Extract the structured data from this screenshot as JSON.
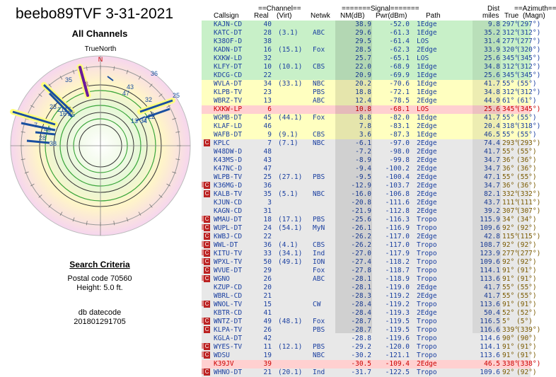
{
  "title": "beebo89TVF 3-31-2021",
  "subtitle": "All Channels",
  "polar": {
    "north_label": "TrueNorth",
    "n_label": "N",
    "labels": [
      {
        "t": "36",
        "c": "#1a4fa0"
      },
      {
        "t": "6",
        "c": "#7a1fa0"
      },
      {
        "t": "35",
        "c": "#1a4fa0"
      },
      {
        "t": "43",
        "c": "#1a4fa0"
      },
      {
        "t": "47",
        "c": "#1a4fa0"
      },
      {
        "t": "32",
        "c": "#1a4fa0"
      },
      {
        "t": "25",
        "c": "#1a4fa0"
      },
      {
        "t": "23",
        "c": "#1a4fa0"
      },
      {
        "t": "16",
        "c": "#1a4fa0"
      },
      {
        "t": "21",
        "c": "#1a4fa0"
      },
      {
        "t": "15",
        "c": "#1a4fa0"
      },
      {
        "t": "45",
        "c": "#1a4fa0"
      },
      {
        "t": "9",
        "c": "#1a4fa0"
      },
      {
        "t": "3",
        "c": "#1a4fa0"
      },
      {
        "t": "22",
        "c": "#1a4fa0"
      },
      {
        "t": "34",
        "c": "#1a4fa0"
      },
      {
        "t": "13",
        "c": "#1a4fa0"
      },
      {
        "t": "7",
        "c": "#1a4fa0"
      },
      {
        "t": "40",
        "c": "#1a4fa0"
      },
      {
        "t": "28",
        "c": "#1a4fa0"
      },
      {
        "t": "38",
        "c": "#1a4fa0"
      }
    ]
  },
  "criteria": {
    "heading": "Search Criteria",
    "postal": "Postal code 70560",
    "height": "Height: 5.0 ft.",
    "db_label": "db datecode",
    "db_value": "201801291705"
  },
  "header": {
    "channel_group": "==Channel==",
    "signal_group": "=======Signal=======",
    "dist_group": "Dist",
    "azimuth_group": "==Azimuth==",
    "callsign": "Callsign",
    "real": "Real",
    "virt": "(Virt)",
    "netwk": "Netwk",
    "nm": "NM(dB)",
    "pwr": "Pwr(dBm)",
    "path": "Path",
    "miles": "miles",
    "true_az": "True",
    "magn": "(Magn)"
  },
  "colors": {
    "green": "#c8f0c8",
    "yellow": "#ffffc0",
    "pink": "#ffd0d0",
    "gray": "#e8e8e8",
    "blue_text": "#1a3fa0",
    "red_text": "#cc0000"
  },
  "rows": [
    {
      "call": "KAJN-CD",
      "real": "40",
      "virt": "",
      "net": "",
      "nm": "38.9",
      "pwr": "-52.0",
      "path": "1Edge",
      "dist": "9.8",
      "az": "297°",
      "mag": "(297°)",
      "bg": "green",
      "fg": "blue",
      "badge": ""
    },
    {
      "call": "KATC-DT",
      "real": "28",
      "virt": "(3.1)",
      "net": "ABC",
      "nm": "29.6",
      "pwr": "-61.3",
      "path": "1Edge",
      "dist": "35.2",
      "az": "312°",
      "mag": "(312°)",
      "bg": "green",
      "fg": "blue",
      "badge": ""
    },
    {
      "call": "K38OF-D",
      "real": "38",
      "virt": "",
      "net": "",
      "nm": "29.5",
      "pwr": "-61.4",
      "path": "LOS",
      "dist": "31.4",
      "az": "277°",
      "mag": "(277°)",
      "bg": "green",
      "fg": "blue",
      "badge": ""
    },
    {
      "call": "KADN-DT",
      "real": "16",
      "virt": "(15.1)",
      "net": "Fox",
      "nm": "28.5",
      "pwr": "-62.3",
      "path": "2Edge",
      "dist": "33.9",
      "az": "320°",
      "mag": "(320°)",
      "bg": "green",
      "fg": "blue",
      "badge": ""
    },
    {
      "call": "KXKW-LD",
      "real": "32",
      "virt": "",
      "net": "",
      "nm": "25.7",
      "pwr": "-65.1",
      "path": "LOS",
      "dist": "25.6",
      "az": "345°",
      "mag": "(345°)",
      "bg": "green",
      "fg": "blue",
      "badge": ""
    },
    {
      "call": "KLFY-DT",
      "real": "10",
      "virt": "(10.1)",
      "net": "CBS",
      "nm": "22.0",
      "pwr": "-68.9",
      "path": "1Edge",
      "dist": "34.8",
      "az": "312°",
      "mag": "(312°)",
      "bg": "green",
      "fg": "blue",
      "badge": ""
    },
    {
      "call": "KDCG-CD",
      "real": "22",
      "virt": "",
      "net": "",
      "nm": "20.9",
      "pwr": "-69.9",
      "path": "1Edge",
      "dist": "25.6",
      "az": "345°",
      "mag": "(345°)",
      "bg": "green",
      "fg": "blue",
      "badge": ""
    },
    {
      "call": "WVLA-DT",
      "real": "34",
      "virt": "(33.1)",
      "net": "NBC",
      "nm": "20.2",
      "pwr": "-70.6",
      "path": "1Edge",
      "dist": "41.7",
      "az": "55°",
      "mag": "(55°)",
      "bg": "yellow",
      "fg": "blue",
      "badge": ""
    },
    {
      "call": "KLPB-TV",
      "real": "23",
      "virt": "",
      "net": "PBS",
      "nm": "18.8",
      "pwr": "-72.1",
      "path": "1Edge",
      "dist": "34.8",
      "az": "312°",
      "mag": "(312°)",
      "bg": "yellow",
      "fg": "blue",
      "badge": ""
    },
    {
      "call": "WBRZ-TV",
      "real": "13",
      "virt": "",
      "net": "ABC",
      "nm": "12.4",
      "pwr": "-78.5",
      "path": "2Edge",
      "dist": "44.9",
      "az": "61°",
      "mag": "(61°)",
      "bg": "yellow",
      "fg": "blue",
      "badge": ""
    },
    {
      "call": "KXKW-LP",
      "real": "6",
      "virt": "",
      "net": "",
      "nm": "10.8",
      "pwr": "-68.1",
      "path": "LOS",
      "dist": "25.6",
      "az": "345°",
      "mag": "(345°)",
      "bg": "pink",
      "fg": "purple",
      "badge": ""
    },
    {
      "call": "WGMB-DT",
      "real": "45",
      "virt": "(44.1)",
      "net": "Fox",
      "nm": "8.8",
      "pwr": "-82.0",
      "path": "1Edge",
      "dist": "41.7",
      "az": "55°",
      "mag": "(55°)",
      "bg": "yellow",
      "fg": "blue",
      "badge": ""
    },
    {
      "call": "KLAF-LD",
      "real": "46",
      "virt": "",
      "net": "",
      "nm": "7.8",
      "pwr": "-83.1",
      "path": "2Edge",
      "dist": "20.4",
      "az": "318°",
      "mag": "(318°)",
      "bg": "yellow",
      "fg": "blue",
      "badge": ""
    },
    {
      "call": "WAFB-DT",
      "real": "9",
      "virt": "(9.1)",
      "net": "CBS",
      "nm": "3.6",
      "pwr": "-87.3",
      "path": "1Edge",
      "dist": "46.5",
      "az": "55°",
      "mag": "(55°)",
      "bg": "yellow",
      "fg": "blue",
      "badge": ""
    },
    {
      "call": "KPLC",
      "real": "7",
      "virt": "(7.1)",
      "net": "NBC",
      "nm": "-6.1",
      "pwr": "-97.0",
      "path": "2Edge",
      "dist": "74.4",
      "az": "293°",
      "mag": "(293°)",
      "bg": "gray",
      "fg": "blue",
      "badge": "C"
    },
    {
      "call": "W48DW-D",
      "real": "48",
      "virt": "",
      "net": "",
      "nm": "-7.2",
      "pwr": "-98.0",
      "path": "2Edge",
      "dist": "41.7",
      "az": "55°",
      "mag": "(55°)",
      "bg": "gray",
      "fg": "blue",
      "badge": ""
    },
    {
      "call": "K43MS-D",
      "real": "43",
      "virt": "",
      "net": "",
      "nm": "-8.9",
      "pwr": "-99.8",
      "path": "2Edge",
      "dist": "34.7",
      "az": "36°",
      "mag": "(36°)",
      "bg": "gray",
      "fg": "blue",
      "badge": ""
    },
    {
      "call": "K47NC-D",
      "real": "47",
      "virt": "",
      "net": "",
      "nm": "-9.4",
      "pwr": "-100.2",
      "path": "2Edge",
      "dist": "34.7",
      "az": "36°",
      "mag": "(36°)",
      "bg": "gray",
      "fg": "blue",
      "badge": ""
    },
    {
      "call": "WLPB-TV",
      "real": "25",
      "virt": "(27.1)",
      "net": "PBS",
      "nm": "-9.5",
      "pwr": "-100.4",
      "path": "2Edge",
      "dist": "47.1",
      "az": "55°",
      "mag": "(55°)",
      "bg": "gray",
      "fg": "blue",
      "badge": ""
    },
    {
      "call": "K36MG-D",
      "real": "36",
      "virt": "",
      "net": "",
      "nm": "-12.9",
      "pwr": "-103.7",
      "path": "2Edge",
      "dist": "34.7",
      "az": "36°",
      "mag": "(36°)",
      "bg": "gray",
      "fg": "blue",
      "badge": "aC"
    },
    {
      "call": "KALB-TV",
      "real": "35",
      "virt": "(5.1)",
      "net": "NBC",
      "nm": "-16.0",
      "pwr": "-106.8",
      "path": "2Edge",
      "dist": "82.1",
      "az": "332°",
      "mag": "(332°)",
      "bg": "gray",
      "fg": "blue",
      "badge": "C"
    },
    {
      "call": "KJUN-CD",
      "real": "3",
      "virt": "",
      "net": "",
      "nm": "-20.8",
      "pwr": "-111.6",
      "path": "2Edge",
      "dist": "43.7",
      "az": "111°",
      "mag": "(111°)",
      "bg": "gray",
      "fg": "blue",
      "badge": ""
    },
    {
      "call": "KAGN-CD",
      "real": "31",
      "virt": "",
      "net": "",
      "nm": "-21.9",
      "pwr": "-112.8",
      "path": "2Edge",
      "dist": "39.2",
      "az": "307°",
      "mag": "(307°)",
      "bg": "gray",
      "fg": "blue",
      "badge": ""
    },
    {
      "call": "WMAU-DT",
      "real": "18",
      "virt": "(17.1)",
      "net": "PBS",
      "nm": "-25.6",
      "pwr": "-116.3",
      "path": "Tropo",
      "dist": "115.9",
      "az": "34°",
      "mag": "(34°)",
      "bg": "gray",
      "fg": "blue",
      "badge": "aC"
    },
    {
      "call": "WUPL-DT",
      "real": "24",
      "virt": "(54.1)",
      "net": "MyN",
      "nm": "-26.1",
      "pwr": "-116.9",
      "path": "Tropo",
      "dist": "109.6",
      "az": "92°",
      "mag": "(92°)",
      "bg": "gray",
      "fg": "blue",
      "badge": "aC"
    },
    {
      "call": "KWBJ-CD",
      "real": "22",
      "virt": "",
      "net": "",
      "nm": "-26.2",
      "pwr": "-117.0",
      "path": "2Edge",
      "dist": "42.8",
      "az": "115°",
      "mag": "(115°)",
      "bg": "gray",
      "fg": "blue",
      "badge": "C"
    },
    {
      "call": "WWL-DT",
      "real": "36",
      "virt": "(4.1)",
      "net": "CBS",
      "nm": "-26.2",
      "pwr": "-117.0",
      "path": "Tropo",
      "dist": "108.7",
      "az": "92°",
      "mag": "(92°)",
      "bg": "gray",
      "fg": "blue",
      "badge": "aC"
    },
    {
      "call": "KITU-TV",
      "real": "33",
      "virt": "(34.1)",
      "net": "Ind",
      "nm": "-27.0",
      "pwr": "-117.9",
      "path": "Tropo",
      "dist": "123.9",
      "az": "277°",
      "mag": "(277°)",
      "bg": "gray",
      "fg": "blue",
      "badge": "aC"
    },
    {
      "call": "WPXL-TV",
      "real": "50",
      "virt": "(49.1)",
      "net": "ION",
      "nm": "-27.4",
      "pwr": "-118.2",
      "path": "Tropo",
      "dist": "109.6",
      "az": "92°",
      "mag": "(92°)",
      "bg": "gray",
      "fg": "blue",
      "badge": "aC"
    },
    {
      "call": "WVUE-DT",
      "real": "29",
      "virt": "",
      "net": "Fox",
      "nm": "-27.8",
      "pwr": "-118.7",
      "path": "Tropo",
      "dist": "114.1",
      "az": "91°",
      "mag": "(91°)",
      "bg": "gray",
      "fg": "blue",
      "badge": "C"
    },
    {
      "call": "WGNO",
      "real": "26",
      "virt": "",
      "net": "ABC",
      "nm": "-28.1",
      "pwr": "-118.9",
      "path": "Tropo",
      "dist": "113.6",
      "az": "91°",
      "mag": "(91°)",
      "bg": "gray",
      "fg": "blue",
      "badge": "aC"
    },
    {
      "call": "KZUP-CD",
      "real": "20",
      "virt": "",
      "net": "",
      "nm": "-28.1",
      "pwr": "-119.0",
      "path": "2Edge",
      "dist": "41.7",
      "az": "55°",
      "mag": "(55°)",
      "bg": "gray",
      "fg": "blue",
      "badge": ""
    },
    {
      "call": "WBRL-CD",
      "real": "21",
      "virt": "",
      "net": "",
      "nm": "-28.3",
      "pwr": "-119.2",
      "path": "2Edge",
      "dist": "41.7",
      "az": "55°",
      "mag": "(55°)",
      "bg": "gray",
      "fg": "blue",
      "badge": ""
    },
    {
      "call": "WNOL-TV",
      "real": "15",
      "virt": "",
      "net": "CW",
      "nm": "-28.4",
      "pwr": "-119.2",
      "path": "Tropo",
      "dist": "113.6",
      "az": "91°",
      "mag": "(91°)",
      "bg": "gray",
      "fg": "blue",
      "badge": "aC"
    },
    {
      "call": "KBTR-CD",
      "real": "41",
      "virt": "",
      "net": "",
      "nm": "-28.4",
      "pwr": "-119.3",
      "path": "2Edge",
      "dist": "50.4",
      "az": "52°",
      "mag": "(52°)",
      "bg": "gray",
      "fg": "blue",
      "badge": ""
    },
    {
      "call": "WNTZ-DT",
      "real": "49",
      "virt": "(48.1)",
      "net": "Fox",
      "nm": "-28.7",
      "pwr": "-119.5",
      "path": "Tropo",
      "dist": "116.5",
      "az": "5°",
      "mag": "(5°)",
      "bg": "gray",
      "fg": "blue",
      "badge": "aC"
    },
    {
      "call": "KLPA-TV",
      "real": "26",
      "virt": "",
      "net": "PBS",
      "nm": "-28.7",
      "pwr": "-119.5",
      "path": "Tropo",
      "dist": "116.6",
      "az": "339°",
      "mag": "(339°)",
      "bg": "gray",
      "fg": "blue",
      "badge": "C"
    },
    {
      "call": "KGLA-DT",
      "real": "42",
      "virt": "",
      "net": "",
      "nm": "-28.8",
      "pwr": "-119.6",
      "path": "Tropo",
      "dist": "114.6",
      "az": "90°",
      "mag": "(90°)",
      "bg": "gray",
      "fg": "blue",
      "badge": ""
    },
    {
      "call": "WYES-TV",
      "real": "11",
      "virt": "(12.1)",
      "net": "PBS",
      "nm": "-29.2",
      "pwr": "-120.0",
      "path": "Tropo",
      "dist": "114.1",
      "az": "91°",
      "mag": "(91°)",
      "bg": "gray",
      "fg": "blue",
      "badge": "aC"
    },
    {
      "call": "WDSU",
      "real": "19",
      "virt": "",
      "net": "NBC",
      "nm": "-30.2",
      "pwr": "-121.1",
      "path": "Tropo",
      "dist": "113.6",
      "az": "91°",
      "mag": "(91°)",
      "bg": "gray",
      "fg": "blue",
      "badge": "aC"
    },
    {
      "call": "K39JV",
      "real": "39",
      "virt": "",
      "net": "",
      "nm": "-30.5",
      "pwr": "-109.4",
      "path": "2Edge",
      "dist": "46.5",
      "az": "338°",
      "mag": "(338°)",
      "bg": "pink",
      "fg": "purple",
      "badge": ""
    },
    {
      "call": "WHNO-DT",
      "real": "21",
      "virt": "(20.1)",
      "net": "Ind",
      "nm": "-31.7",
      "pwr": "-122.5",
      "path": "Tropo",
      "dist": "109.6",
      "az": "92°",
      "mag": "(92°)",
      "bg": "gray",
      "fg": "blue",
      "badge": "aC"
    }
  ]
}
